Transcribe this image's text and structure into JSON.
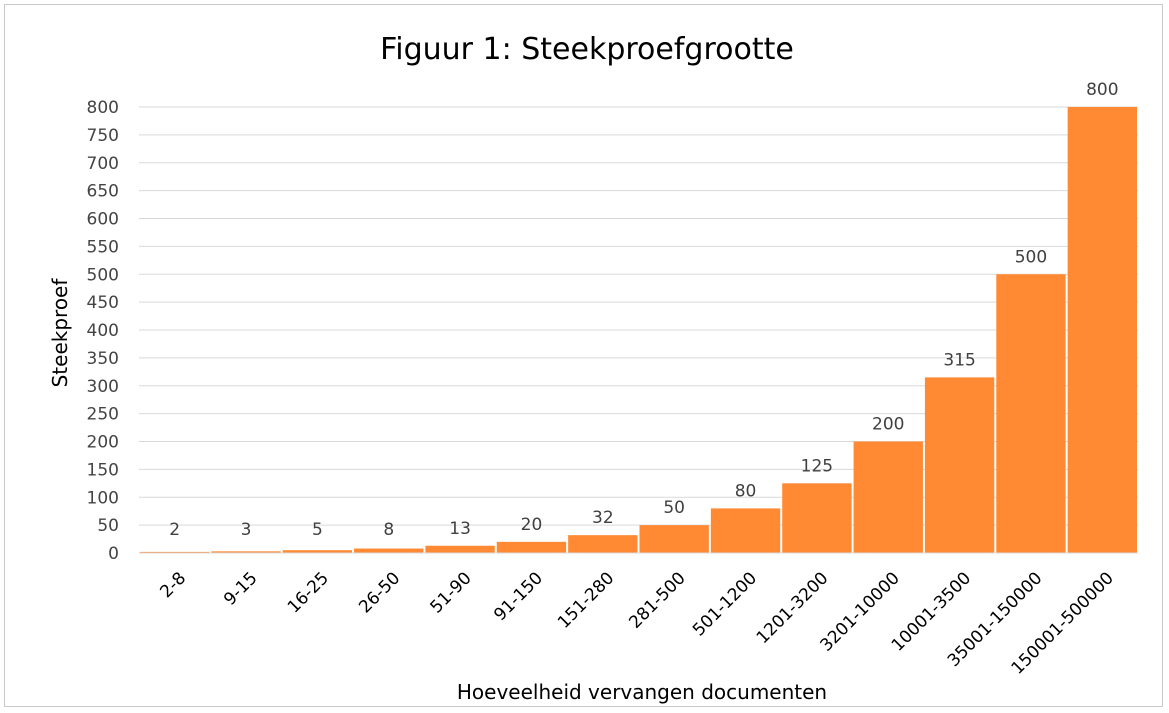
{
  "chart_data": {
    "type": "bar",
    "title": "Figuur 1: Steekproefgrootte",
    "xlabel": "Hoeveelheid vervangen documenten",
    "ylabel": "Steekproef",
    "categories": [
      "2-8",
      "9-15",
      "16-25",
      "26-50",
      "51-90",
      "91-150",
      "151-280",
      "281-500",
      "501-1200",
      "1201-3200",
      "3201-10000",
      "10001-3500",
      "35001-150000",
      "150001-500000"
    ],
    "values": [
      2,
      3,
      5,
      8,
      13,
      20,
      32,
      50,
      80,
      125,
      200,
      315,
      500,
      800
    ],
    "ylim": [
      0,
      800
    ],
    "yticks": [
      0,
      50,
      100,
      150,
      200,
      250,
      300,
      350,
      400,
      450,
      500,
      550,
      600,
      650,
      700,
      750,
      800
    ],
    "grid": true,
    "legend": "none",
    "bar_color": "#FF8A33"
  }
}
